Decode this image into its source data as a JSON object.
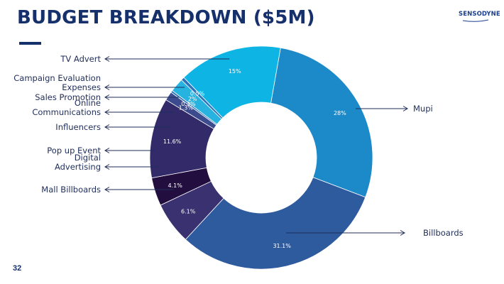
{
  "slide": {
    "title": "BUDGET BREAKDOWN ($5M)",
    "page_number": "32",
    "logo_text": "SENSODYNE",
    "accent_color": "#16306c"
  },
  "chart_data": {
    "type": "pie",
    "title": "BUDGET BREAKDOWN ($5M)",
    "slices": [
      {
        "name": "Mupi",
        "value": 28,
        "label": "28%",
        "color": "#1c89c9"
      },
      {
        "name": "Billboards",
        "value": 31.1,
        "label": "31.1%",
        "color": "#2e5a9e"
      },
      {
        "name": "Mall Billboards",
        "value": 6.1,
        "label": "6.1%",
        "color": "#3a3170"
      },
      {
        "name": "Digital Advertising",
        "value": 4.1,
        "label": "4.1%",
        "color": "#220e3f"
      },
      {
        "name": "Pop up Event",
        "value": 11.6,
        "label": "11.6%",
        "color": "#332a6a"
      },
      {
        "name": "Influencers",
        "value": 1.3,
        "label": "1.3%",
        "color": "#3c4a8e"
      },
      {
        "name": "Online Communications",
        "value": 0.3,
        "label": "0.3%",
        "color": "#2f74b5"
      },
      {
        "name": "Sales Promotion",
        "value": 2,
        "label": "2%",
        "color": "#26b3e0"
      },
      {
        "name": "Campaign Evaluation Expenses",
        "value": 0.5,
        "label": "0.5%",
        "color": "#2f73bd"
      },
      {
        "name": "TV Advert",
        "value": 15,
        "label": "15%",
        "color": "#0db4e4"
      }
    ]
  }
}
